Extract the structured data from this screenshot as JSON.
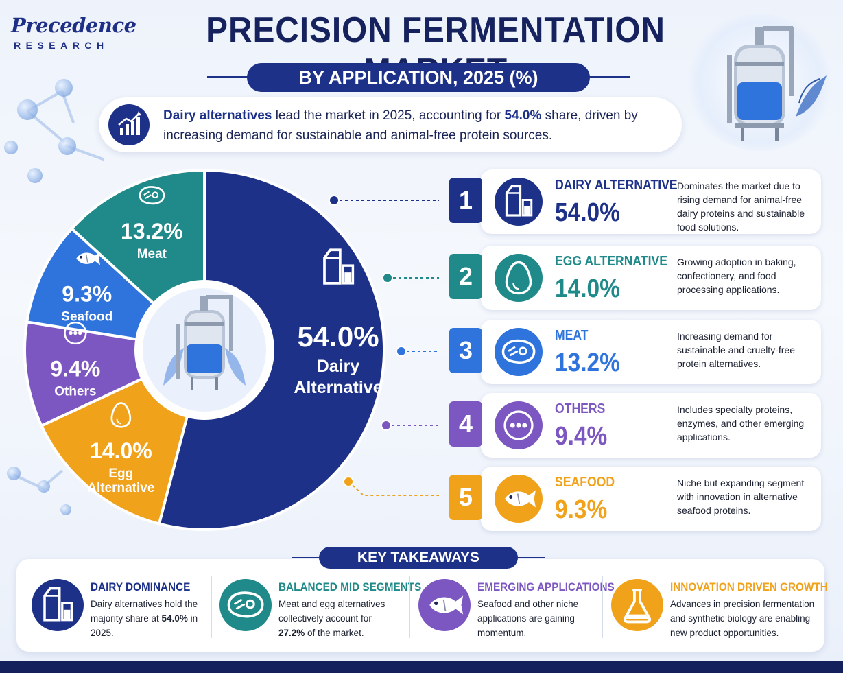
{
  "brand": {
    "logo_main": "Precedence",
    "logo_sub": "RESEARCH"
  },
  "header": {
    "title": "PRECISION FERMENTATION MARKET",
    "subtitle": "BY APPLICATION, 2025 (%)"
  },
  "intro": {
    "lead_bold": "Dairy alternatives",
    "part1": " lead the market in 2025, accounting for ",
    "value_bold": "54.0%",
    "part2": " share, driven by increasing demand for sustainable and animal-free protein sources."
  },
  "colors": {
    "dairy": "#1d3189",
    "egg": "#f0a21b",
    "others": "#7d57c1",
    "seafood": "#2f74dc",
    "meat": "#1f8a89"
  },
  "chart_data": {
    "type": "pie",
    "title": "PRECISION FERMENTATION MARKET",
    "subtitle": "BY APPLICATION, 2025 (%)",
    "slices": [
      {
        "label": "Dairy Alternative",
        "label_lines": [
          "Dairy",
          "Alternative"
        ],
        "value": 54.0,
        "display": "54.0%",
        "color": "#1d3189",
        "icon": "milk-carton-icon"
      },
      {
        "label": "Egg Alternative",
        "label_lines": [
          "Egg",
          "Alternative"
        ],
        "value": 14.0,
        "display": "14.0%",
        "color": "#f0a21b",
        "icon": "egg-icon"
      },
      {
        "label": "Others",
        "label_lines": [
          "Others"
        ],
        "value": 9.4,
        "display": "9.4%",
        "color": "#7d57c1",
        "icon": "dots-icon"
      },
      {
        "label": "Seafood",
        "label_lines": [
          "Seafood"
        ],
        "value": 9.3,
        "display": "9.3%",
        "color": "#2f74dc",
        "icon": "fish-icon"
      },
      {
        "label": "Meat",
        "label_lines": [
          "Meat"
        ],
        "value": 13.2,
        "display": "13.2%",
        "color": "#1f8a89",
        "icon": "steak-icon"
      }
    ]
  },
  "segments": [
    {
      "rank": "1",
      "name": "DAIRY ALTERNATIVE",
      "value": "54.0%",
      "color": "#1d3189",
      "icon": "milk-carton-icon",
      "desc": "Dominates the market due to rising demand for animal-free dairy proteins and sustainable food solutions."
    },
    {
      "rank": "2",
      "name": "EGG ALTERNATIVE",
      "value": "14.0%",
      "color": "#1f8a89",
      "icon": "egg-icon",
      "desc": "Growing adoption in baking, confectionery, and food processing applications."
    },
    {
      "rank": "3",
      "name": "MEAT",
      "value": "13.2%",
      "color": "#2f74dc",
      "icon": "steak-icon",
      "desc": "Increasing demand for sustainable and cruelty-free protein alternatives."
    },
    {
      "rank": "4",
      "name": "OTHERS",
      "value": "9.4%",
      "color": "#7d57c1",
      "icon": "dots-icon",
      "desc": "Includes specialty proteins, enzymes, and other emerging applications."
    },
    {
      "rank": "5",
      "name": "SEAFOOD",
      "value": "9.3%",
      "color": "#f0a21b",
      "icon": "fish-icon",
      "desc": "Niche but expanding segment with innovation in alternative seafood proteins."
    }
  ],
  "takeaways": {
    "heading": "KEY TAKEAWAYS",
    "items": [
      {
        "title": "DAIRY DOMINANCE",
        "color": "#1d3189",
        "icon": "milk-carton-icon",
        "text_a": "Dairy alternatives hold the majority share at ",
        "text_b": "54.0%",
        "text_c": " in 2025."
      },
      {
        "title": "BALANCED MID SEGMENTS",
        "color": "#1f8a89",
        "icon": "steak-icon",
        "text_a": "Meat and egg alternatives collectively account for ",
        "text_b": "27.2%",
        "text_c": " of the market."
      },
      {
        "title": "EMERGING APPLICATIONS",
        "color": "#7d57c1",
        "icon": "fish-icon",
        "text_a": "Seafood and other niche applications are gaining momentum.",
        "text_b": "",
        "text_c": ""
      },
      {
        "title": "INNOVATION DRIVEN GROWTH",
        "color": "#f0a21b",
        "icon": "flask-icon",
        "text_a": "Advances in precision fermentation and synthetic biology are enabling new product opportunities.",
        "text_b": "",
        "text_c": ""
      }
    ]
  }
}
